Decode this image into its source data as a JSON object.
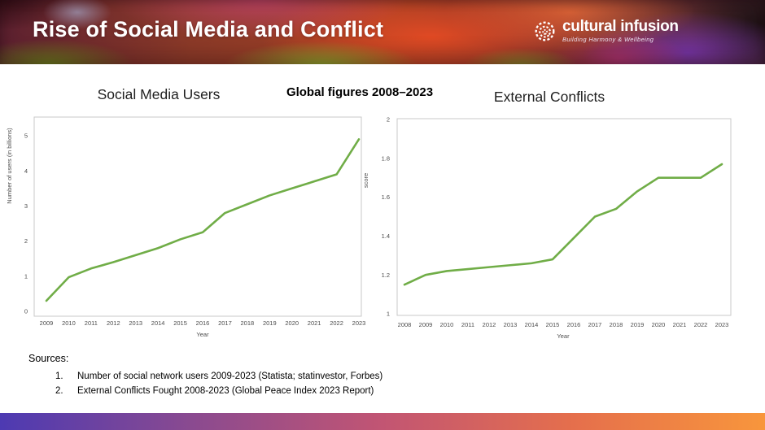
{
  "header": {
    "title": "Rise of Social Media and Conflict",
    "logo": {
      "name": "cultural infusion",
      "tagline": "Building Harmony & Wellbeing"
    }
  },
  "subtitle": "Global figures 2008–2023",
  "chart_data": [
    {
      "type": "line",
      "title": "Social Media Users",
      "xlabel": "Year",
      "ylabel": "Number of users (in billions)",
      "x": [
        2009,
        2010,
        2011,
        2012,
        2013,
        2014,
        2015,
        2016,
        2017,
        2018,
        2019,
        2020,
        2021,
        2022,
        2023
      ],
      "values": [
        0.3,
        0.97,
        1.22,
        1.4,
        1.6,
        1.8,
        2.05,
        2.25,
        2.8,
        3.05,
        3.3,
        3.5,
        3.7,
        3.9,
        4.9
      ],
      "ylim": [
        0,
        5
      ],
      "yticks": [
        0,
        1,
        2,
        3,
        4,
        5
      ],
      "grid": false,
      "legend": "none",
      "line_color": "#70ad47"
    },
    {
      "type": "line",
      "title": "External Conflicts",
      "xlabel": "Year",
      "ylabel": "score",
      "x": [
        2008,
        2009,
        2010,
        2011,
        2012,
        2013,
        2014,
        2015,
        2016,
        2017,
        2018,
        2019,
        2020,
        2021,
        2022,
        2023
      ],
      "values": [
        1.15,
        1.2,
        1.22,
        1.23,
        1.24,
        1.25,
        1.26,
        1.28,
        1.39,
        1.5,
        1.54,
        1.63,
        1.7,
        1.7,
        1.7,
        1.77
      ],
      "ylim": [
        1,
        2
      ],
      "yticks": [
        1,
        1.2,
        1.4,
        1.6,
        1.8,
        2
      ],
      "grid": false,
      "legend": "none",
      "line_color": "#70ad47"
    }
  ],
  "sources": {
    "heading": "Sources:",
    "items": [
      {
        "num": "1.",
        "text": "Number of social network users 2009-2023 (Statista; statinvestor, Forbes)"
      },
      {
        "num": "2.",
        "text": "External Conflicts Fought 2008-2023 (Global Peace Index 2023 Report)"
      }
    ]
  },
  "colors": {
    "line_green": "#70ad47",
    "chart_border": "#c9c9c9",
    "bottom_bar_gradient": [
      "#4d3ab2",
      "#8a4a90",
      "#c25573",
      "#e56f4c",
      "#f8963c"
    ]
  }
}
